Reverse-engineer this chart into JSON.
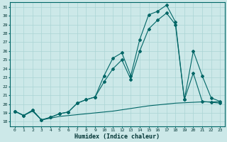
{
  "xlabel": "Humidex (Indice chaleur)",
  "bg_color": "#cce8e8",
  "line_color": "#006666",
  "grid_color": "#aad4d4",
  "xlim": [
    -0.5,
    23.5
  ],
  "ylim": [
    17.5,
    31.5
  ],
  "yticks": [
    18,
    19,
    20,
    21,
    22,
    23,
    24,
    25,
    26,
    27,
    28,
    29,
    30,
    31
  ],
  "xticks": [
    0,
    1,
    2,
    3,
    4,
    5,
    6,
    7,
    8,
    9,
    10,
    11,
    12,
    13,
    14,
    15,
    16,
    17,
    18,
    19,
    20,
    21,
    22,
    23
  ],
  "line1_x": [
    0,
    1,
    2,
    3,
    4,
    5,
    6,
    7,
    8,
    9,
    10,
    11,
    12,
    13,
    14,
    15,
    16,
    17,
    18,
    19,
    20,
    21,
    22,
    23
  ],
  "line1_y": [
    19.2,
    18.7,
    19.3,
    18.2,
    18.5,
    18.9,
    19.1,
    20.1,
    20.5,
    20.8,
    23.2,
    25.2,
    25.8,
    23.2,
    27.3,
    30.1,
    30.5,
    31.2,
    29.3,
    20.5,
    26.0,
    23.2,
    20.7,
    20.3
  ],
  "line2_x": [
    0,
    1,
    2,
    3,
    4,
    5,
    6,
    7,
    8,
    9,
    10,
    11,
    12,
    13,
    14,
    15,
    16,
    17,
    18,
    19,
    20,
    21,
    22,
    23
  ],
  "line2_y": [
    19.2,
    18.7,
    19.3,
    18.2,
    18.5,
    18.9,
    19.1,
    20.1,
    20.5,
    20.8,
    22.5,
    24.0,
    25.0,
    22.8,
    26.0,
    28.5,
    29.5,
    30.3,
    29.0,
    20.5,
    23.5,
    20.3,
    20.2,
    20.1
  ],
  "line3_x": [
    0,
    1,
    2,
    3,
    4,
    5,
    6,
    7,
    8,
    9,
    10,
    11,
    12,
    13,
    14,
    15,
    16,
    17,
    18,
    19,
    20,
    21,
    22,
    23
  ],
  "line3_y": [
    19.2,
    18.7,
    19.2,
    18.2,
    18.4,
    18.6,
    18.7,
    18.8,
    18.9,
    19.0,
    19.1,
    19.2,
    19.35,
    19.5,
    19.65,
    19.8,
    19.9,
    20.0,
    20.1,
    20.15,
    20.2,
    20.25,
    20.25,
    20.25
  ]
}
